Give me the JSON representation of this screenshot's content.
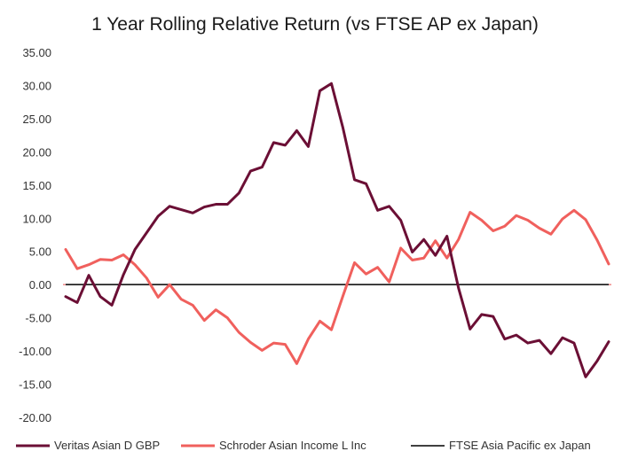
{
  "chart_data": {
    "type": "line",
    "title": "1 Year Rolling Relative Return (vs FTSE AP ex Japan)",
    "xlabel": "",
    "ylabel": "",
    "ylim": [
      -20,
      35
    ],
    "y_ticks": [
      "35.00",
      "30.00",
      "25.00",
      "20.00",
      "15.00",
      "10.00",
      "5.00",
      "0.00",
      "-5.00",
      "-10.00",
      "-15.00",
      "-20.00"
    ],
    "y_tick_values": [
      35,
      30,
      25,
      20,
      15,
      10,
      5,
      0,
      -5,
      -10,
      -15,
      -20
    ],
    "grid": false,
    "legend_position": "bottom",
    "x_count": 56,
    "series": [
      {
        "name": "Veritas Asian D GBP",
        "color": "#6b0f35",
        "values": [
          -1.8,
          -2.7,
          1.4,
          -1.8,
          -3.1,
          1.5,
          5.3,
          7.8,
          10.3,
          11.8,
          11.3,
          10.8,
          11.7,
          12.1,
          12.1,
          13.8,
          17.1,
          17.7,
          21.4,
          21.0,
          23.2,
          20.8,
          29.2,
          30.3,
          23.6,
          15.8,
          15.2,
          11.2,
          11.8,
          9.7,
          4.9,
          6.8,
          4.4,
          7.3,
          -0.5,
          -6.7,
          -4.5,
          -4.8,
          -8.2,
          -7.6,
          -8.8,
          -8.4,
          -10.4,
          -8.0,
          -8.8,
          -13.9,
          -11.5,
          -8.6
        ],
        "x_start": 0
      },
      {
        "name": "Schroder Asian Income L Inc",
        "color": "#f0605d",
        "values": [
          5.3,
          2.4,
          3.0,
          3.8,
          3.7,
          4.5,
          3.0,
          1.0,
          -1.9,
          0.0,
          -2.2,
          -3.1,
          -5.4,
          -3.8,
          -5.0,
          -7.2,
          -8.7,
          -9.9,
          -8.8,
          -9.0,
          -11.9,
          -8.2,
          -5.5,
          -6.8,
          -1.7,
          3.3,
          1.6,
          2.6,
          0.4,
          5.5,
          3.7,
          4.0,
          6.6,
          4.0,
          6.8,
          10.9,
          9.7,
          8.1,
          8.8,
          10.4,
          9.7,
          8.5,
          7.6,
          9.9,
          11.2,
          9.8,
          6.7,
          3.1
        ],
        "x_start": 0
      },
      {
        "name": "FTSE Asia Pacific ex Japan",
        "color": "#000000",
        "values": [
          0,
          0
        ],
        "x_start": 0
      }
    ]
  }
}
